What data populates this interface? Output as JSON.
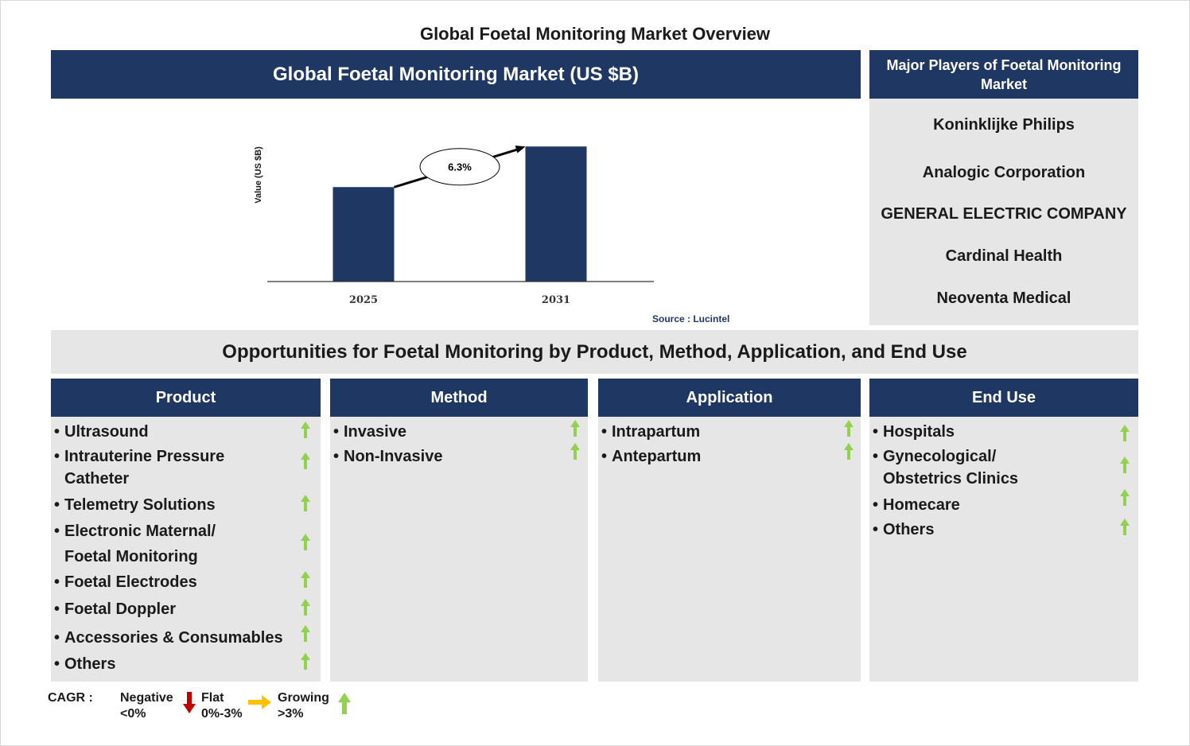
{
  "page_title": "Global Foetal Monitoring Market Overview",
  "chart_header": "Global Foetal Monitoring Market (US $B)",
  "chart_data": {
    "type": "bar",
    "categories": [
      "2025",
      "2031"
    ],
    "values": [
      1.0,
      1.43
    ],
    "ylabel": "Value (US $B)",
    "cagr_label": "6.3%",
    "source": "Source : Lucintel",
    "bar_color": "#1f3763",
    "ylim": [
      0,
      1.6
    ]
  },
  "players": {
    "title": "Major Players of Foetal Monitoring Market",
    "items": [
      "Koninklijke Philips",
      "Analogic Corporation",
      "GENERAL ELECTRIC COMPANY",
      "Cardinal Health",
      "Neoventa Medical"
    ]
  },
  "opportunities_title": "Opportunities for Foetal Monitoring by Product, Method, Application, and End Use",
  "segments": [
    {
      "title": "Product",
      "items": [
        {
          "lines": [
            "Ultrasound"
          ],
          "trend": "growing"
        },
        {
          "lines": [
            "Intrauterine Pressure",
            "Catheter"
          ],
          "trend": "growing"
        },
        {
          "lines": [
            "Telemetry Solutions"
          ],
          "trend": "growing"
        },
        {
          "lines": [
            "Electronic Maternal/",
            "Foetal Monitoring"
          ],
          "trend": "growing"
        },
        {
          "lines": [
            "Foetal Electrodes"
          ],
          "trend": "growing"
        },
        {
          "lines": [
            "Foetal Doppler"
          ],
          "trend": "growing"
        },
        {
          "lines": [
            "Accessories & Consumables"
          ],
          "trend": "growing"
        },
        {
          "lines": [
            "Others"
          ],
          "trend": "growing"
        }
      ]
    },
    {
      "title": "Method",
      "items": [
        {
          "lines": [
            "Invasive"
          ],
          "trend": "growing"
        },
        {
          "lines": [
            "Non-Invasive"
          ],
          "trend": "growing"
        }
      ]
    },
    {
      "title": "Application",
      "items": [
        {
          "lines": [
            "Intrapartum"
          ],
          "trend": "growing"
        },
        {
          "lines": [
            "Antepartum"
          ],
          "trend": "growing"
        }
      ]
    },
    {
      "title": "End Use",
      "items": [
        {
          "lines": [
            "Hospitals"
          ],
          "trend": "growing"
        },
        {
          "lines": [
            "Gynecological/",
            "Obstetrics Clinics"
          ],
          "trend": "growing"
        },
        {
          "lines": [
            "Homecare"
          ],
          "trend": "growing"
        },
        {
          "lines": [
            "Others"
          ],
          "trend": "growing"
        }
      ]
    }
  ],
  "legend": {
    "label": "CAGR :",
    "negative": {
      "label": "Negative",
      "range": "<0%",
      "color": "#c00000",
      "icon": "down-arrow-icon"
    },
    "flat": {
      "label": "Flat",
      "range": "0%-3%",
      "color": "#ffc000",
      "icon": "right-arrow-icon"
    },
    "growing": {
      "label": "Growing",
      "range": ">3%",
      "color": "#92d050",
      "icon": "up-arrow-icon"
    }
  }
}
